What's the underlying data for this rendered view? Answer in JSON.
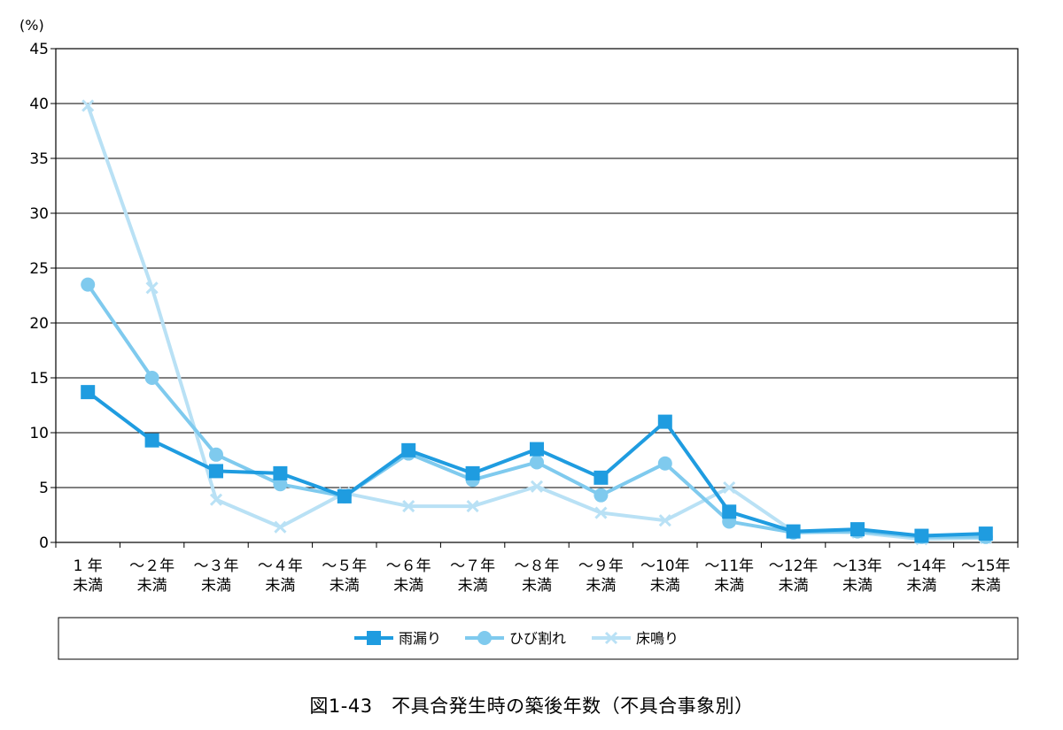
{
  "caption": "図1-43　不具合発生時の築後年数（不具合事象別）",
  "chart_data": {
    "type": "line",
    "unit_label": "(%)",
    "ylim": [
      0,
      45
    ],
    "yticks": [
      0,
      5,
      10,
      15,
      20,
      25,
      30,
      35,
      40,
      45
    ],
    "grid": true,
    "legend_position": "bottom",
    "categories": [
      [
        "1 年",
        "未満"
      ],
      [
        "～２年",
        "未満"
      ],
      [
        "～３年",
        "未満"
      ],
      [
        "～４年",
        "未満"
      ],
      [
        "～５年",
        "未満"
      ],
      [
        "～６年",
        "未満"
      ],
      [
        "～７年",
        "未満"
      ],
      [
        "～８年",
        "未満"
      ],
      [
        "～９年",
        "未満"
      ],
      [
        "～10年",
        "未満"
      ],
      [
        "～11年",
        "未満"
      ],
      [
        "～12年",
        "未満"
      ],
      [
        "～13年",
        "未満"
      ],
      [
        "～14年",
        "未満"
      ],
      [
        "～15年",
        "未満"
      ]
    ],
    "series": [
      {
        "name": "床鳴り",
        "color": "#b9e1f5",
        "marker": "x",
        "values": [
          39.8,
          23.2,
          3.9,
          1.4,
          4.5,
          3.3,
          3.3,
          5.1,
          2.7,
          2.0,
          5.0,
          1.0,
          0.9,
          0.3,
          0.4
        ]
      },
      {
        "name": "ひび割れ",
        "color": "#7fcaee",
        "marker": "circle",
        "values": [
          23.5,
          15.0,
          8.0,
          5.3,
          4.2,
          8.1,
          5.7,
          7.3,
          4.3,
          7.2,
          1.9,
          0.9,
          1.0,
          0.5,
          0.5
        ]
      },
      {
        "name": "雨漏り",
        "color": "#1f9ce0",
        "marker": "square",
        "values": [
          13.7,
          9.3,
          6.5,
          6.3,
          4.2,
          8.4,
          6.3,
          8.5,
          5.9,
          11.0,
          2.8,
          1.0,
          1.2,
          0.6,
          0.8
        ]
      }
    ],
    "legend_order": [
      "雨漏り",
      "ひび割れ",
      "床鳴り"
    ]
  }
}
